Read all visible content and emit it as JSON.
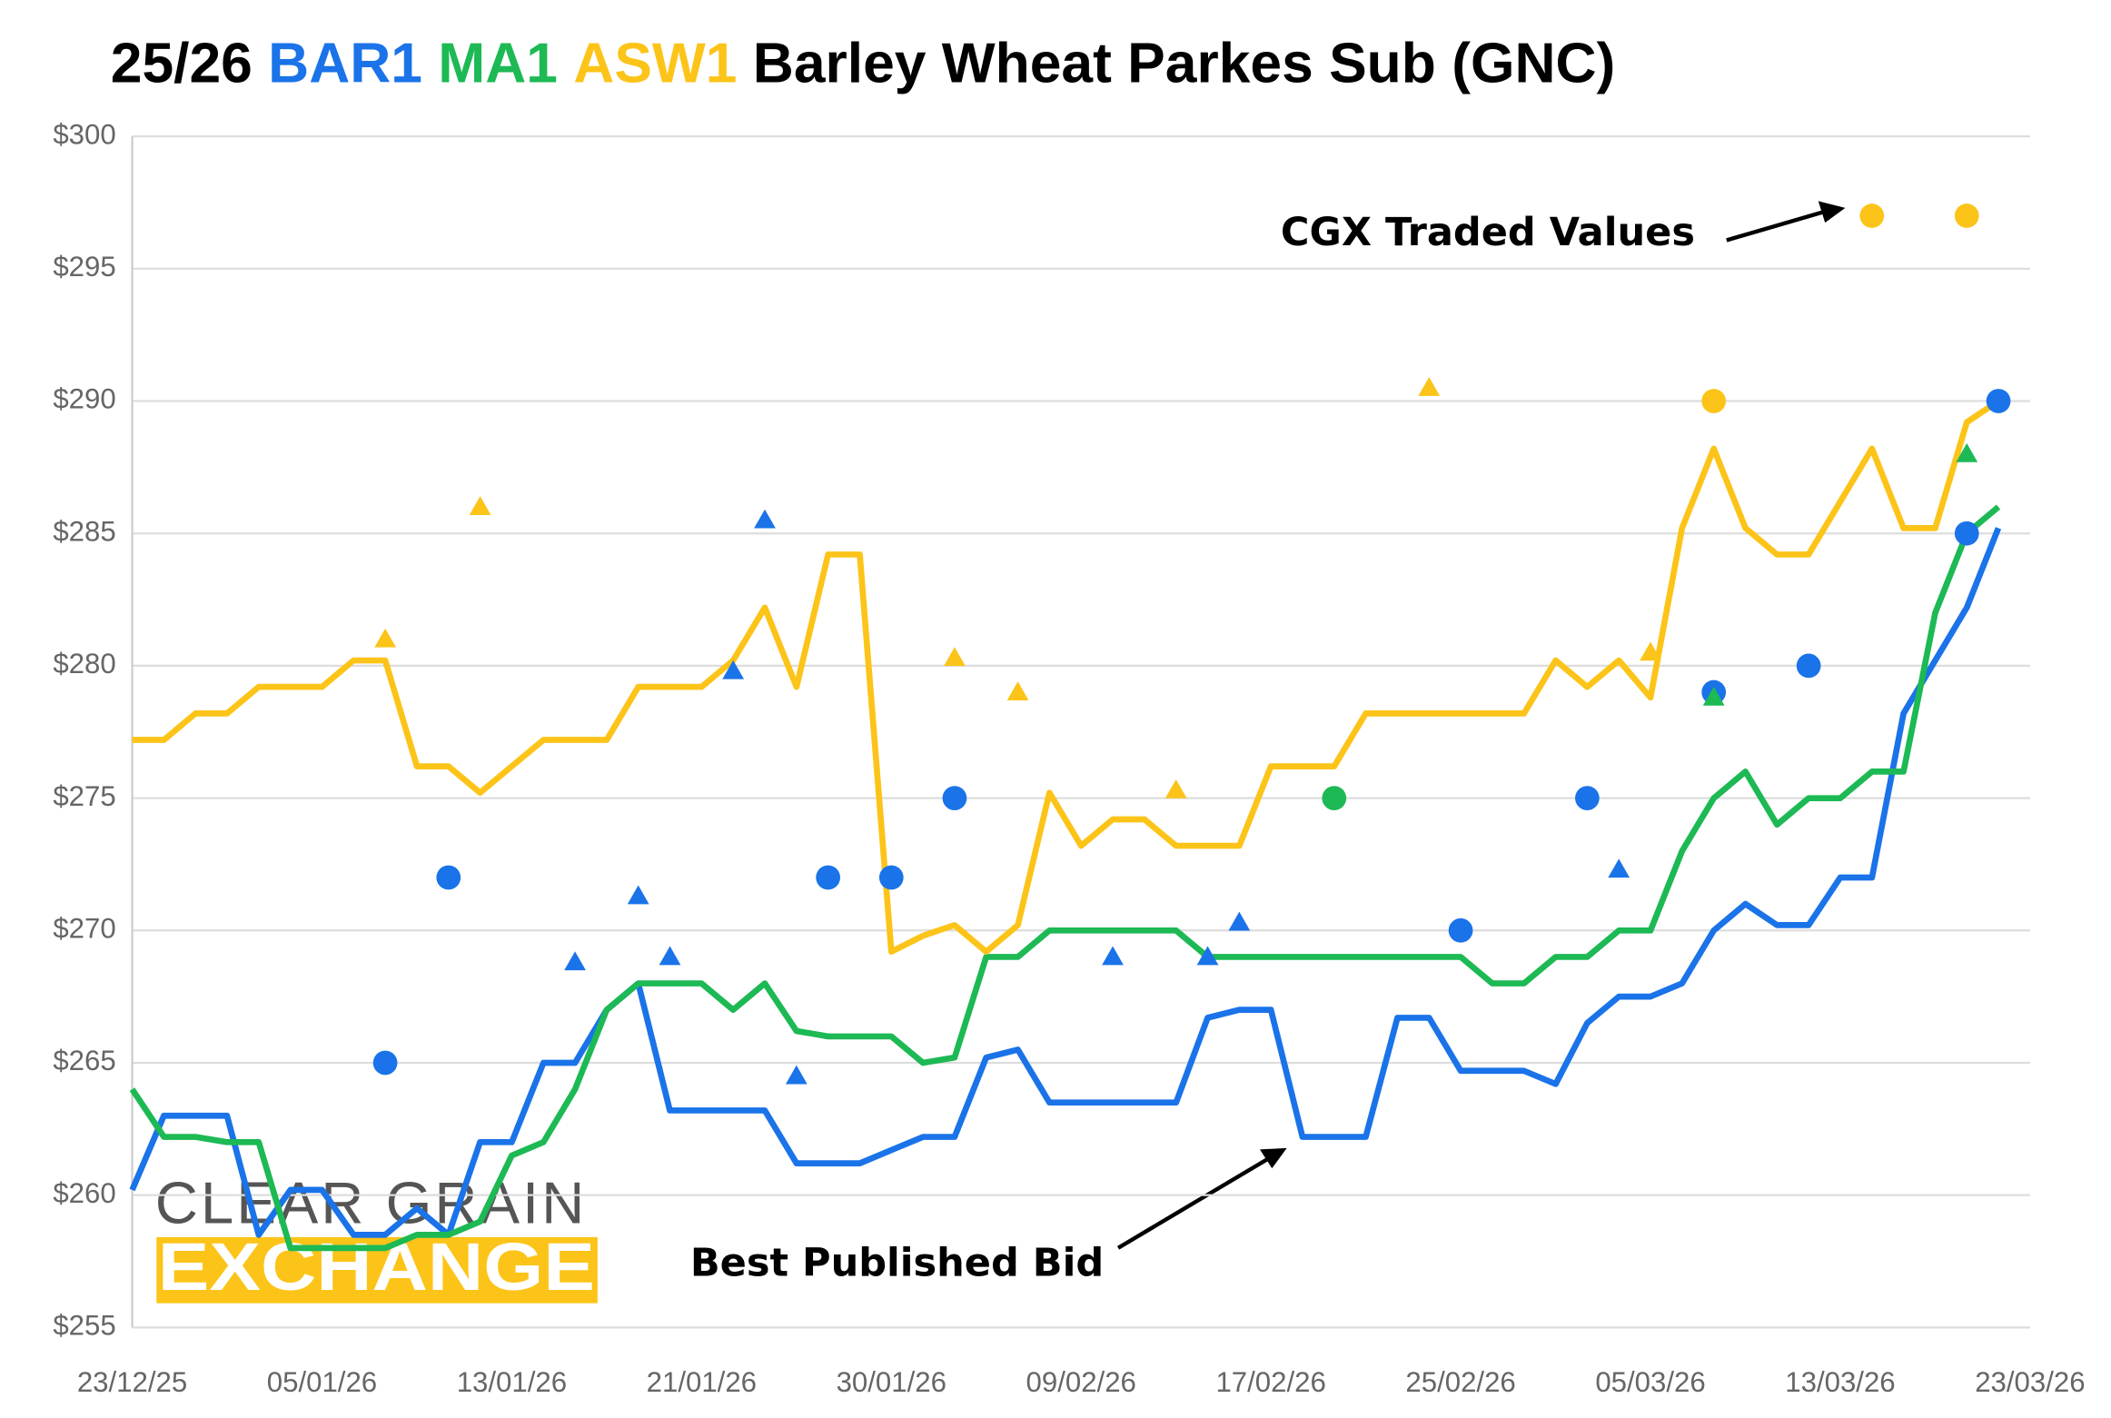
{
  "chart_data": {
    "type": "line",
    "title_prefix": "25/26",
    "title": "Barley Wheat Parkes Sub (GNC)",
    "categories": [
      "23/12/25",
      null,
      null,
      null,
      null,
      null,
      "05/01/26",
      null,
      null,
      null,
      null,
      null,
      "13/01/26",
      null,
      null,
      null,
      null,
      null,
      "21/01/26",
      null,
      null,
      null,
      null,
      null,
      "30/01/26",
      null,
      null,
      null,
      null,
      null,
      "09/02/26",
      null,
      null,
      null,
      null,
      null,
      "17/02/26",
      null,
      null,
      null,
      null,
      null,
      "25/02/26",
      null,
      null,
      null,
      null,
      null,
      "05/03/26",
      null,
      null,
      null,
      null,
      null,
      "13/03/26",
      null,
      null,
      null,
      null,
      null,
      "23/03/26"
    ],
    "series": [
      {
        "name": "BAR1",
        "color": "#1a73e8",
        "values": [
          260.2,
          263,
          263,
          263,
          258.5,
          260.2,
          260.2,
          258.5,
          258.5,
          259.5,
          258.5,
          262,
          262,
          265,
          265,
          267,
          268,
          263.2,
          263.2,
          263.2,
          263.2,
          261.2,
          261.2,
          261.2,
          261.7,
          262.2,
          262.2,
          265.2,
          265.5,
          263.5,
          263.5,
          263.5,
          263.5,
          263.5,
          266.7,
          267,
          267,
          262.2,
          262.2,
          262.2,
          266.7,
          266.7,
          264.7,
          264.7,
          264.7,
          264.2,
          266.5,
          267.5,
          267.5,
          268,
          270,
          271,
          270.2,
          270.2,
          272,
          272,
          278.2,
          280.2,
          282.2,
          285.2,
          null
        ]
      },
      {
        "name": "MA1",
        "color": "#1db954",
        "values": [
          264,
          262.2,
          262.2,
          262,
          262,
          258,
          258,
          258,
          258,
          258.5,
          258.5,
          259,
          261.5,
          262,
          264,
          267,
          268,
          268,
          268,
          267,
          268,
          266.2,
          266,
          266,
          266,
          265,
          265.2,
          269,
          269,
          270,
          270,
          270,
          270,
          270,
          269,
          269,
          269,
          269,
          269,
          269,
          269,
          269,
          269,
          268,
          268,
          269,
          269,
          270,
          270,
          273,
          275,
          276,
          274,
          275,
          275,
          276,
          276,
          282,
          285,
          286,
          null
        ]
      },
      {
        "name": "ASW1",
        "color": "#fcc419",
        "values": [
          277.2,
          277.2,
          278.2,
          278.2,
          279.2,
          279.2,
          279.2,
          280.2,
          280.2,
          276.2,
          276.2,
          275.2,
          276.2,
          277.2,
          277.2,
          277.2,
          279.2,
          279.2,
          279.2,
          280.2,
          282.2,
          279.2,
          284.2,
          284.2,
          269.2,
          269.8,
          270.2,
          269.2,
          270.2,
          275.2,
          273.2,
          274.2,
          274.2,
          273.2,
          273.2,
          273.2,
          276.2,
          276.2,
          276.2,
          278.2,
          278.2,
          278.2,
          278.2,
          278.2,
          278.2,
          280.2,
          279.2,
          280.2,
          278.8,
          285.2,
          288.2,
          285.2,
          284.2,
          284.2,
          286.2,
          288.2,
          285.2,
          285.2,
          289.2,
          290,
          null
        ]
      }
    ],
    "markers": [
      {
        "x": 8,
        "y": 265,
        "color": "#1a73e8",
        "shape": "circle"
      },
      {
        "x": 10,
        "y": 272,
        "color": "#1a73e8",
        "shape": "circle"
      },
      {
        "x": 22,
        "y": 272,
        "color": "#1a73e8",
        "shape": "circle"
      },
      {
        "x": 24,
        "y": 272,
        "color": "#1a73e8",
        "shape": "circle"
      },
      {
        "x": 26,
        "y": 275,
        "color": "#1a73e8",
        "shape": "circle"
      },
      {
        "x": 42,
        "y": 270,
        "color": "#1a73e8",
        "shape": "circle"
      },
      {
        "x": 46,
        "y": 275,
        "color": "#1a73e8",
        "shape": "circle"
      },
      {
        "x": 50,
        "y": 279,
        "color": "#1a73e8",
        "shape": "circle"
      },
      {
        "x": 53,
        "y": 280,
        "color": "#1a73e8",
        "shape": "circle"
      },
      {
        "x": 58,
        "y": 285,
        "color": "#1a73e8",
        "shape": "circle"
      },
      {
        "x": 59,
        "y": 290,
        "color": "#1a73e8",
        "shape": "circle"
      },
      {
        "x": 38,
        "y": 275,
        "color": "#1db954",
        "shape": "circle"
      },
      {
        "x": 50,
        "y": 290,
        "color": "#fcc419",
        "shape": "circle"
      },
      {
        "x": 55,
        "y": 297,
        "color": "#fcc419",
        "shape": "circle"
      },
      {
        "x": 58,
        "y": 297,
        "color": "#fcc419",
        "shape": "circle"
      },
      {
        "x": 14,
        "y": 268.8,
        "color": "#1a73e8",
        "shape": "triangle"
      },
      {
        "x": 16,
        "y": 271.3,
        "color": "#1a73e8",
        "shape": "triangle"
      },
      {
        "x": 17,
        "y": 269,
        "color": "#1a73e8",
        "shape": "triangle"
      },
      {
        "x": 19,
        "y": 279.8,
        "color": "#1a73e8",
        "shape": "triangle"
      },
      {
        "x": 20,
        "y": 285.5,
        "color": "#1a73e8",
        "shape": "triangle"
      },
      {
        "x": 21,
        "y": 264.5,
        "color": "#1a73e8",
        "shape": "triangle"
      },
      {
        "x": 31,
        "y": 269,
        "color": "#1a73e8",
        "shape": "triangle"
      },
      {
        "x": 34,
        "y": 269,
        "color": "#1a73e8",
        "shape": "triangle"
      },
      {
        "x": 35,
        "y": 270.3,
        "color": "#1a73e8",
        "shape": "triangle"
      },
      {
        "x": 47,
        "y": 272.3,
        "color": "#1a73e8",
        "shape": "triangle"
      },
      {
        "x": 8,
        "y": 281,
        "color": "#fcc419",
        "shape": "triangle"
      },
      {
        "x": 11,
        "y": 286,
        "color": "#fcc419",
        "shape": "triangle"
      },
      {
        "x": 26,
        "y": 280.3,
        "color": "#fcc419",
        "shape": "triangle"
      },
      {
        "x": 28,
        "y": 279,
        "color": "#fcc419",
        "shape": "triangle"
      },
      {
        "x": 33,
        "y": 275.3,
        "color": "#fcc419",
        "shape": "triangle"
      },
      {
        "x": 41,
        "y": 290.5,
        "color": "#fcc419",
        "shape": "triangle"
      },
      {
        "x": 48,
        "y": 280.5,
        "color": "#fcc419",
        "shape": "triangle"
      },
      {
        "x": 50,
        "y": 278.8,
        "color": "#1db954",
        "shape": "triangle"
      },
      {
        "x": 58,
        "y": 288,
        "color": "#1db954",
        "shape": "triangle"
      }
    ],
    "ylim": [
      255,
      300
    ],
    "yticks": [
      {
        "value": 255,
        "label": "$255"
      },
      {
        "value": 260,
        "label": "$260"
      },
      {
        "value": 265,
        "label": "$265"
      },
      {
        "value": 270,
        "label": "$270"
      },
      {
        "value": 275,
        "label": "$275"
      },
      {
        "value": 280,
        "label": "$280"
      },
      {
        "value": 285,
        "label": "$285"
      },
      {
        "value": 290,
        "label": "$290"
      },
      {
        "value": 295,
        "label": "$295"
      },
      {
        "value": 300,
        "label": "$300"
      }
    ],
    "grid": true,
    "annotations": [
      "CGX Traded Values",
      "Best Published Bid"
    ],
    "logo": [
      "CLEAR GRAIN",
      "EXCHANGE"
    ]
  }
}
